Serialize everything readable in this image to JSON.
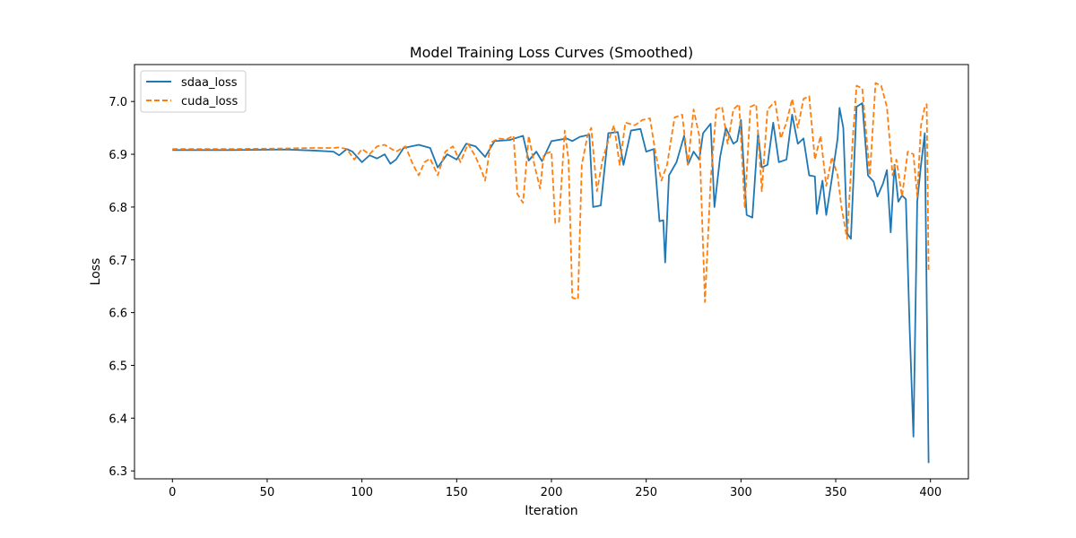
{
  "chart_data": {
    "type": "line",
    "title": "Model Training Loss Curves (Smoothed)",
    "xlabel": "Iteration",
    "ylabel": "Loss",
    "xlim": [
      -20,
      420
    ],
    "ylim": [
      6.285,
      7.07
    ],
    "xticks": [
      0,
      50,
      100,
      150,
      200,
      250,
      300,
      350,
      400
    ],
    "yticks": [
      6.3,
      6.4,
      6.5,
      6.6,
      6.7,
      6.8,
      6.9,
      7.0
    ],
    "grid": false,
    "legend_position": "top-left",
    "series": [
      {
        "name": "sdaa_loss",
        "color": "#1f77b4",
        "dash": "solid",
        "points": [
          [
            0,
            6.908
          ],
          [
            30,
            6.908
          ],
          [
            60,
            6.909
          ],
          [
            75,
            6.907
          ],
          [
            85,
            6.905
          ],
          [
            88,
            6.898
          ],
          [
            92,
            6.91
          ],
          [
            95,
            6.905
          ],
          [
            100,
            6.885
          ],
          [
            104,
            6.898
          ],
          [
            108,
            6.892
          ],
          [
            112,
            6.9
          ],
          [
            115,
            6.882
          ],
          [
            118,
            6.89
          ],
          [
            122,
            6.912
          ],
          [
            130,
            6.918
          ],
          [
            136,
            6.912
          ],
          [
            140,
            6.875
          ],
          [
            145,
            6.9
          ],
          [
            150,
            6.89
          ],
          [
            155,
            6.92
          ],
          [
            160,
            6.915
          ],
          [
            165,
            6.895
          ],
          [
            170,
            6.925
          ],
          [
            178,
            6.927
          ],
          [
            185,
            6.935
          ],
          [
            188,
            6.888
          ],
          [
            192,
            6.905
          ],
          [
            195,
            6.887
          ],
          [
            200,
            6.925
          ],
          [
            205,
            6.928
          ],
          [
            208,
            6.93
          ],
          [
            211,
            6.925
          ],
          [
            215,
            6.933
          ],
          [
            220,
            6.937
          ],
          [
            222,
            6.8
          ],
          [
            226,
            6.803
          ],
          [
            230,
            6.94
          ],
          [
            235,
            6.942
          ],
          [
            238,
            6.88
          ],
          [
            242,
            6.945
          ],
          [
            247,
            6.948
          ],
          [
            250,
            6.905
          ],
          [
            254,
            6.91
          ],
          [
            257,
            6.773
          ],
          [
            259,
            6.775
          ],
          [
            260,
            6.695
          ],
          [
            262,
            6.86
          ],
          [
            266,
            6.885
          ],
          [
            270,
            6.935
          ],
          [
            272,
            6.88
          ],
          [
            275,
            6.905
          ],
          [
            278,
            6.89
          ],
          [
            280,
            6.94
          ],
          [
            284,
            6.958
          ],
          [
            286,
            6.8
          ],
          [
            289,
            6.895
          ],
          [
            292,
            6.95
          ],
          [
            296,
            6.92
          ],
          [
            298,
            6.925
          ],
          [
            300,
            6.965
          ],
          [
            303,
            6.785
          ],
          [
            306,
            6.78
          ],
          [
            309,
            6.94
          ],
          [
            311,
            6.875
          ],
          [
            314,
            6.88
          ],
          [
            317,
            6.96
          ],
          [
            320,
            6.885
          ],
          [
            324,
            6.89
          ],
          [
            327,
            6.975
          ],
          [
            330,
            6.92
          ],
          [
            333,
            6.93
          ],
          [
            336,
            6.86
          ],
          [
            339,
            6.858
          ],
          [
            340,
            6.787
          ],
          [
            343,
            6.85
          ],
          [
            345,
            6.785
          ],
          [
            348,
            6.855
          ],
          [
            351,
            6.93
          ],
          [
            352,
            6.988
          ],
          [
            354,
            6.95
          ],
          [
            356,
            6.75
          ],
          [
            358,
            6.74
          ],
          [
            361,
            6.99
          ],
          [
            364,
            6.997
          ],
          [
            367,
            6.86
          ],
          [
            370,
            6.848
          ],
          [
            372,
            6.82
          ],
          [
            375,
            6.845
          ],
          [
            377,
            6.87
          ],
          [
            379,
            6.752
          ],
          [
            381,
            6.88
          ],
          [
            383,
            6.81
          ],
          [
            385,
            6.822
          ],
          [
            387,
            6.815
          ],
          [
            389,
            6.57
          ],
          [
            391,
            6.365
          ],
          [
            393,
            6.81
          ],
          [
            395,
            6.88
          ],
          [
            397,
            6.94
          ],
          [
            399,
            6.315
          ]
        ]
      },
      {
        "name": "cuda_loss",
        "color": "#ff7f0e",
        "dash": "dashed",
        "points": [
          [
            0,
            6.91
          ],
          [
            30,
            6.91
          ],
          [
            60,
            6.911
          ],
          [
            75,
            6.912
          ],
          [
            85,
            6.912
          ],
          [
            88,
            6.913
          ],
          [
            92,
            6.91
          ],
          [
            96,
            6.89
          ],
          [
            100,
            6.91
          ],
          [
            104,
            6.9
          ],
          [
            108,
            6.915
          ],
          [
            112,
            6.918
          ],
          [
            118,
            6.905
          ],
          [
            123,
            6.915
          ],
          [
            127,
            6.88
          ],
          [
            130,
            6.86
          ],
          [
            133,
            6.885
          ],
          [
            136,
            6.892
          ],
          [
            140,
            6.86
          ],
          [
            144,
            6.905
          ],
          [
            148,
            6.915
          ],
          [
            152,
            6.885
          ],
          [
            156,
            6.92
          ],
          [
            160,
            6.895
          ],
          [
            163,
            6.87
          ],
          [
            165,
            6.85
          ],
          [
            168,
            6.922
          ],
          [
            172,
            6.93
          ],
          [
            176,
            6.928
          ],
          [
            180,
            6.935
          ],
          [
            182,
            6.825
          ],
          [
            185,
            6.808
          ],
          [
            188,
            6.935
          ],
          [
            191,
            6.88
          ],
          [
            194,
            6.835
          ],
          [
            196,
            6.9
          ],
          [
            200,
            6.905
          ],
          [
            202,
            6.77
          ],
          [
            204,
            6.772
          ],
          [
            207,
            6.945
          ],
          [
            209,
            6.89
          ],
          [
            211,
            6.628
          ],
          [
            214,
            6.625
          ],
          [
            216,
            6.88
          ],
          [
            219,
            6.935
          ],
          [
            221,
            6.95
          ],
          [
            224,
            6.83
          ],
          [
            227,
            6.89
          ],
          [
            230,
            6.925
          ],
          [
            233,
            6.955
          ],
          [
            236,
            6.88
          ],
          [
            239,
            6.96
          ],
          [
            244,
            6.955
          ],
          [
            248,
            6.965
          ],
          [
            252,
            6.968
          ],
          [
            255,
            6.9
          ],
          [
            258,
            6.85
          ],
          [
            261,
            6.88
          ],
          [
            265,
            6.97
          ],
          [
            269,
            6.975
          ],
          [
            272,
            6.88
          ],
          [
            275,
            6.985
          ],
          [
            278,
            6.935
          ],
          [
            281,
            6.62
          ],
          [
            284,
            6.85
          ],
          [
            287,
            6.985
          ],
          [
            290,
            6.99
          ],
          [
            293,
            6.92
          ],
          [
            296,
            6.985
          ],
          [
            299,
            6.995
          ],
          [
            302,
            6.8
          ],
          [
            305,
            6.99
          ],
          [
            308,
            6.995
          ],
          [
            311,
            6.83
          ],
          [
            314,
            6.985
          ],
          [
            318,
            7.0
          ],
          [
            321,
            6.93
          ],
          [
            324,
            6.96
          ],
          [
            327,
            7.005
          ],
          [
            330,
            6.95
          ],
          [
            333,
            7.005
          ],
          [
            336,
            7.01
          ],
          [
            339,
            6.89
          ],
          [
            342,
            6.935
          ],
          [
            345,
            6.84
          ],
          [
            348,
            6.895
          ],
          [
            351,
            6.86
          ],
          [
            353,
            6.8
          ],
          [
            356,
            6.74
          ],
          [
            359,
            6.93
          ],
          [
            361,
            7.03
          ],
          [
            364,
            7.025
          ],
          [
            368,
            6.86
          ],
          [
            371,
            7.035
          ],
          [
            374,
            7.03
          ],
          [
            377,
            6.99
          ],
          [
            380,
            6.86
          ],
          [
            382,
            6.89
          ],
          [
            385,
            6.82
          ],
          [
            388,
            6.905
          ],
          [
            391,
            6.9
          ],
          [
            393,
            6.82
          ],
          [
            395,
            6.955
          ],
          [
            397,
            6.99
          ],
          [
            398,
            6.995
          ],
          [
            399,
            6.68
          ]
        ]
      }
    ]
  }
}
